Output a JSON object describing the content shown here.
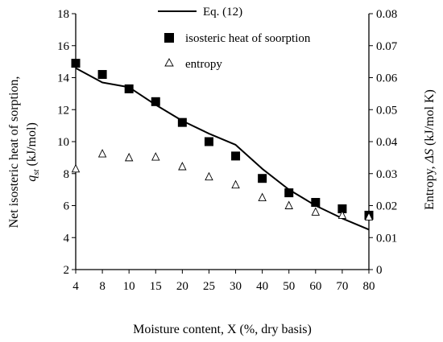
{
  "chart_data": {
    "type": "line",
    "x_axis": {
      "label": "Moisture content, X (%, dry basis)",
      "categories": [
        "4",
        "8",
        "10",
        "15",
        "20",
        "25",
        "30",
        "40",
        "50",
        "60",
        "70",
        "80"
      ],
      "scale": "categorical"
    },
    "y_axis_left": {
      "label": "Net isosteric heat of sorption, q_st (kJ/mol)",
      "label_line1": "Net isosteric heat of sorption,",
      "label_line2_var": "q",
      "label_line2_sub": "st",
      "label_line2_rest": " (kJ/mol)",
      "ylim": [
        2,
        18
      ],
      "ticks": [
        2,
        4,
        6,
        8,
        10,
        12,
        14,
        16,
        18
      ]
    },
    "y_axis_right": {
      "label": "Entropy, ΔS (kJ/mol K)",
      "label_pre": "Entropy, ",
      "label_var": "ΔS",
      "label_post": " (kJ/mol K)",
      "ylim": [
        0,
        0.08
      ],
      "ticks": [
        "0",
        "0.01",
        "0.02",
        "0.03",
        "0.04",
        "0.05",
        "0.06",
        "0.07",
        "0.08"
      ]
    },
    "series": [
      {
        "name": "Eq. (12)",
        "style": "line",
        "axis": "left",
        "color": "#000000",
        "values": [
          14.6,
          13.7,
          13.4,
          12.3,
          11.3,
          10.5,
          9.8,
          8.3,
          7.0,
          6.0,
          5.2,
          4.5
        ]
      },
      {
        "name": "isosteric heat of soorption",
        "style": "filled-square",
        "axis": "left",
        "color": "#000000",
        "values": [
          14.9,
          14.2,
          13.3,
          12.5,
          11.2,
          10.0,
          9.1,
          7.7,
          6.8,
          6.2,
          5.8,
          5.4
        ]
      },
      {
        "name": "entropy",
        "style": "open-triangle",
        "axis": "right",
        "color": "#000000",
        "values": [
          0.0315,
          0.0362,
          0.035,
          0.0352,
          0.0322,
          0.029,
          0.0265,
          0.0225,
          0.02,
          0.018,
          0.017,
          0.0165
        ]
      }
    ],
    "legend": {
      "position": "top-center"
    },
    "grid": false
  }
}
